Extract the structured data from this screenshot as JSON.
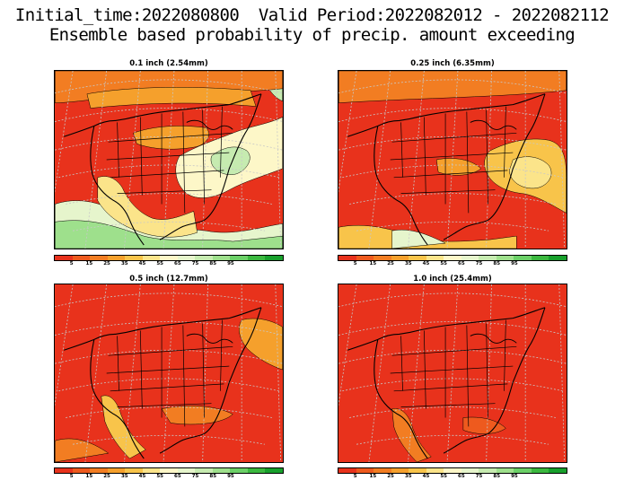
{
  "header": {
    "line1": "Initial_time:2022080800  Valid Period:2022082012 - 2022082112",
    "line2": "Ensemble based probability of precip. amount exceeding"
  },
  "panels": [
    {
      "title": "0.1 inch (2.54mm)",
      "variant": "wet"
    },
    {
      "title": "0.25 inch (6.35mm)",
      "variant": "moderate"
    },
    {
      "title": "0.5 inch (12.7mm)",
      "variant": "dry"
    },
    {
      "title": "1.0 inch (25.4mm)",
      "variant": "driest"
    }
  ],
  "colorbar": {
    "colors": [
      "#e8321c",
      "#ee5a1e",
      "#f27d22",
      "#f5a02c",
      "#f8c44a",
      "#fbe48a",
      "#fdf7c8",
      "#e6f5cc",
      "#c6ebb0",
      "#9ee08c",
      "#6bd067",
      "#3bb83f",
      "#18a02c"
    ],
    "ticks": [
      "5",
      "15",
      "25",
      "35",
      "45",
      "55",
      "65",
      "75",
      "85",
      "95"
    ]
  }
}
